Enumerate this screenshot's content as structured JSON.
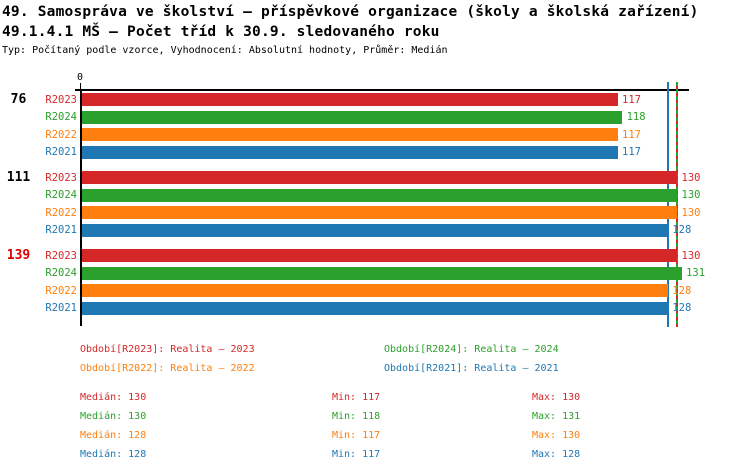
{
  "header": {
    "title": "49. Samospráva ve školství – příspěvkové organizace (školy a školská zařízení)",
    "subtitle": "49.1.4.1 MŠ – Počet tříd k 30.9. sledovaného roku",
    "meta": "Typ: Počítaný podle vzorce, Vyhodnocení: Absolutní hodnoty, Průměr: Medián"
  },
  "chart_data": {
    "type": "bar",
    "orientation": "horizontal",
    "value_axis": {
      "zero_label": "0",
      "min": 0,
      "max_visible": 131,
      "grid": false
    },
    "row_order": [
      "R2023",
      "R2024",
      "R2022",
      "R2021"
    ],
    "series": [
      {
        "id": "R2023",
        "legend_label": "Období[R2023]: Realita – 2023",
        "color": "#d62728",
        "median": 130,
        "min": 117,
        "max": 130
      },
      {
        "id": "R2024",
        "legend_label": "Období[R2024]: Realita – 2024",
        "color": "#2ca02c",
        "median": 130,
        "min": 118,
        "max": 131
      },
      {
        "id": "R2022",
        "legend_label": "Období[R2022]: Realita – 2022",
        "color": "#ff7f0e",
        "median": 128,
        "min": 117,
        "max": 130
      },
      {
        "id": "R2021",
        "legend_label": "Období[R2021]: Realita – 2021",
        "color": "#1f77b4",
        "median": 128,
        "min": 117,
        "max": 128
      }
    ],
    "groups": [
      {
        "label": "76",
        "label_color": "#000000",
        "values": {
          "R2023": 117,
          "R2024": 118,
          "R2022": 117,
          "R2021": 117
        }
      },
      {
        "label": "111",
        "label_color": "#000000",
        "values": {
          "R2023": 130,
          "R2024": 130,
          "R2022": 130,
          "R2021": 128
        }
      },
      {
        "label": "139",
        "label_color": "#dd0000",
        "values": {
          "R2023": 130,
          "R2024": 131,
          "R2022": 128,
          "R2021": 128
        }
      }
    ],
    "median_lines": [
      {
        "series": "R2022",
        "value": 128,
        "color": "#ff7f0e",
        "style": "solid"
      },
      {
        "series": "R2021",
        "value": 128,
        "color": "#1f77b4",
        "style": "solid"
      },
      {
        "series": "R2023",
        "value": 130,
        "color": "#d62728",
        "style": "solid"
      },
      {
        "series": "R2024",
        "value": 130,
        "color": "#2ca02c",
        "style": "dashed"
      }
    ]
  },
  "legend": {
    "items": [
      {
        "label": "Období[R2023]: Realita – 2023",
        "color": "#d62728"
      },
      {
        "label": "Období[R2024]: Realita – 2024",
        "color": "#2ca02c"
      },
      {
        "label": "Období[R2022]: Realita – 2022",
        "color": "#ff7f0e"
      },
      {
        "label": "Období[R2021]: Realita – 2021",
        "color": "#1f77b4"
      }
    ]
  },
  "stats": {
    "rows": [
      {
        "color": "#d62728",
        "median_text": "Medián: 130",
        "min_text": "Min: 117",
        "max_text": "Max: 130"
      },
      {
        "color": "#2ca02c",
        "median_text": "Medián: 130",
        "min_text": "Min: 118",
        "max_text": "Max: 131"
      },
      {
        "color": "#ff7f0e",
        "median_text": "Medián: 128",
        "min_text": "Min: 117",
        "max_text": "Max: 130"
      },
      {
        "color": "#1f77b4",
        "median_text": "Medián: 128",
        "min_text": "Min: 117",
        "max_text": "Max: 128"
      }
    ]
  }
}
